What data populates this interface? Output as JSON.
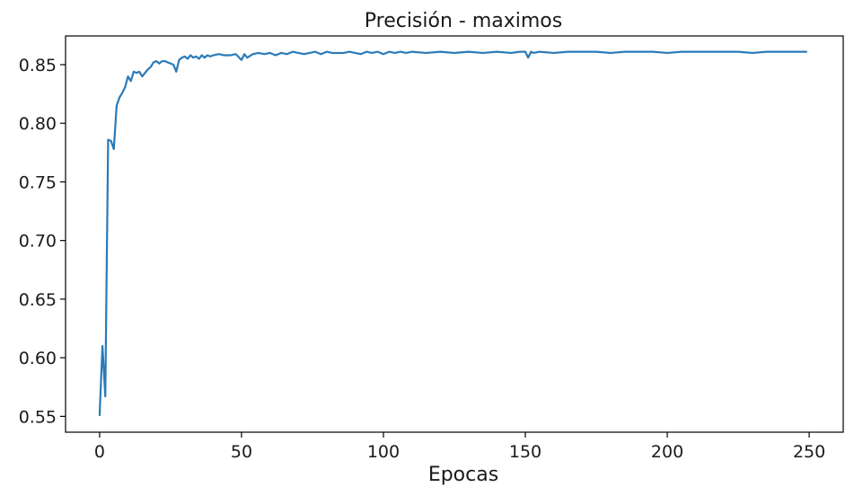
{
  "chart_data": {
    "type": "line",
    "title": "Precisión - maximos",
    "xlabel": "Epocas",
    "ylabel": "",
    "xlim": [
      -12,
      262
    ],
    "ylim": [
      0.5365,
      0.8745
    ],
    "xticks": [
      0,
      50,
      100,
      150,
      200,
      250
    ],
    "xtick_labels": [
      "0",
      "50",
      "100",
      "150",
      "200",
      "250"
    ],
    "yticks": [
      0.55,
      0.6,
      0.65,
      0.7,
      0.75,
      0.8,
      0.85
    ],
    "ytick_labels": [
      "0.55",
      "0.60",
      "0.65",
      "0.70",
      "0.75",
      "0.80",
      "0.85"
    ],
    "grid": false,
    "legend": "none",
    "colors": {
      "series": "#2a7ab8",
      "frame": "#000000",
      "text": "#1a1a1a"
    },
    "series": [
      {
        "x": [
          0,
          1,
          2,
          3,
          4,
          5,
          6,
          7,
          8,
          9,
          10,
          11,
          12,
          13,
          14,
          15,
          16,
          17,
          18,
          19,
          20,
          21,
          22,
          23,
          24,
          25,
          26,
          27,
          28,
          29,
          30,
          31,
          32,
          33,
          34,
          35,
          36,
          37,
          38,
          39,
          40,
          42,
          44,
          46,
          48,
          50,
          51,
          52,
          54,
          56,
          58,
          60,
          62,
          64,
          66,
          68,
          70,
          72,
          74,
          76,
          78,
          80,
          82,
          84,
          86,
          88,
          90,
          92,
          94,
          96,
          98,
          100,
          102,
          104,
          106,
          108,
          110,
          115,
          120,
          125,
          130,
          135,
          140,
          145,
          148,
          150,
          151,
          152,
          153,
          155,
          160,
          165,
          170,
          175,
          180,
          185,
          190,
          195,
          200,
          205,
          210,
          215,
          220,
          225,
          230,
          235,
          240,
          245,
          249
        ],
        "y": [
          0.551,
          0.61,
          0.567,
          0.786,
          0.785,
          0.778,
          0.815,
          0.822,
          0.826,
          0.831,
          0.84,
          0.836,
          0.844,
          0.843,
          0.844,
          0.84,
          0.843,
          0.846,
          0.848,
          0.852,
          0.853,
          0.851,
          0.853,
          0.853,
          0.852,
          0.851,
          0.85,
          0.844,
          0.854,
          0.856,
          0.857,
          0.855,
          0.858,
          0.856,
          0.857,
          0.855,
          0.858,
          0.856,
          0.858,
          0.857,
          0.858,
          0.859,
          0.858,
          0.858,
          0.859,
          0.854,
          0.859,
          0.856,
          0.859,
          0.86,
          0.859,
          0.86,
          0.858,
          0.86,
          0.859,
          0.861,
          0.86,
          0.859,
          0.86,
          0.861,
          0.859,
          0.861,
          0.86,
          0.86,
          0.86,
          0.861,
          0.86,
          0.859,
          0.861,
          0.86,
          0.861,
          0.859,
          0.861,
          0.86,
          0.861,
          0.86,
          0.861,
          0.86,
          0.861,
          0.86,
          0.861,
          0.86,
          0.861,
          0.86,
          0.861,
          0.861,
          0.856,
          0.861,
          0.86,
          0.861,
          0.86,
          0.861,
          0.861,
          0.861,
          0.86,
          0.861,
          0.861,
          0.861,
          0.86,
          0.861,
          0.861,
          0.861,
          0.861,
          0.861,
          0.86,
          0.861,
          0.861,
          0.861,
          0.861
        ]
      }
    ]
  }
}
